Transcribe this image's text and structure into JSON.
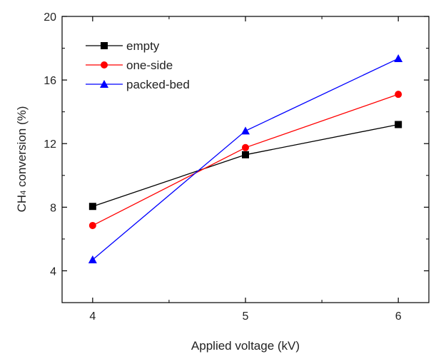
{
  "chart_data": {
    "type": "line",
    "title": "",
    "xlabel": "Applied voltage (kV)",
    "ylabel": {
      "prefix": "CH",
      "subscript": "4",
      "suffix": " conversion (%)"
    },
    "x": [
      4,
      5,
      6
    ],
    "xlim": [
      3.8,
      6.2
    ],
    "ylim": [
      2,
      20
    ],
    "x_ticks": [
      4,
      5,
      6
    ],
    "y_ticks": [
      4,
      8,
      12,
      16,
      20
    ],
    "legend_position": "top-left",
    "grid": false,
    "series": [
      {
        "name": "empty",
        "values": [
          8.05,
          11.3,
          13.2
        ],
        "color": "#000000",
        "marker": "square"
      },
      {
        "name": "one-side",
        "values": [
          6.85,
          11.75,
          15.1
        ],
        "color": "#ff0000",
        "marker": "circle"
      },
      {
        "name": "packed-bed",
        "values": [
          4.7,
          12.8,
          17.35
        ],
        "color": "#0000ff",
        "marker": "triangle"
      }
    ]
  }
}
